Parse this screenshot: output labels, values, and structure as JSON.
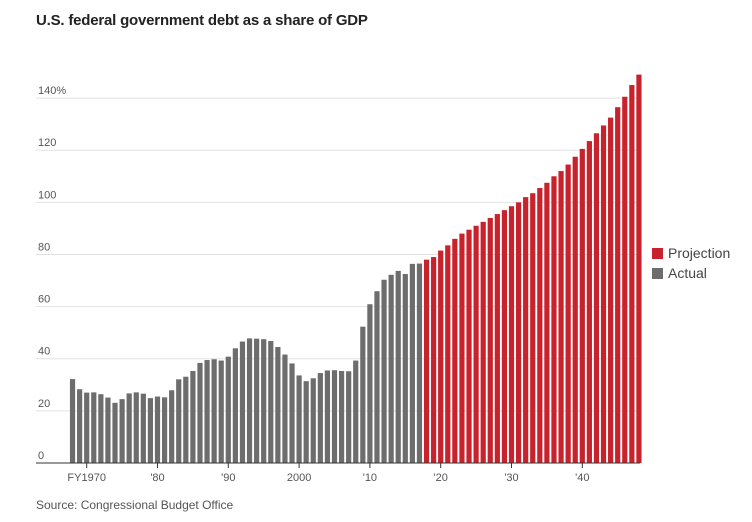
{
  "title": "U.S. federal government debt as a share of GDP",
  "source": "Source: Congressional Budget Office",
  "colors": {
    "actual": "#6d6d6d",
    "projection": "#c8232c",
    "grid": "#e2e2e2",
    "axis": "#333333"
  },
  "legend": [
    {
      "label": "Projection",
      "color": "#c8232c"
    },
    {
      "label": "Actual",
      "color": "#6d6d6d"
    }
  ],
  "chart_data": {
    "type": "bar",
    "title": "U.S. federal government debt as a share of GDP",
    "xlabel": "",
    "ylabel": "",
    "ylim": [
      0,
      150
    ],
    "yticks": [
      {
        "value": 0,
        "label": "0"
      },
      {
        "value": 20,
        "label": "20"
      },
      {
        "value": 40,
        "label": "40"
      },
      {
        "value": 60,
        "label": "60"
      },
      {
        "value": 80,
        "label": "80"
      },
      {
        "value": 100,
        "label": "100"
      },
      {
        "value": 120,
        "label": "120"
      },
      {
        "value": 140,
        "label": "140%"
      }
    ],
    "xticks": [
      {
        "year": 1970,
        "label": "FY1970"
      },
      {
        "year": 1980,
        "label": "'80"
      },
      {
        "year": 1990,
        "label": "'90"
      },
      {
        "year": 2000,
        "label": "2000"
      },
      {
        "year": 2010,
        "label": "'10"
      },
      {
        "year": 2020,
        "label": "'20"
      },
      {
        "year": 2030,
        "label": "'30"
      },
      {
        "year": 2040,
        "label": "'40"
      }
    ],
    "grid": true,
    "legend_position": "right",
    "series": [
      {
        "name": "Actual",
        "years": [
          1968,
          1969,
          1970,
          1971,
          1972,
          1973,
          1974,
          1975,
          1976,
          1977,
          1978,
          1979,
          1980,
          1981,
          1982,
          1983,
          1984,
          1985,
          1986,
          1987,
          1988,
          1989,
          1990,
          1991,
          1992,
          1993,
          1994,
          1995,
          1996,
          1997,
          1998,
          1999,
          2000,
          2001,
          2002,
          2003,
          2004,
          2005,
          2006,
          2007,
          2008,
          2009,
          2010,
          2011,
          2012,
          2013,
          2014,
          2015,
          2016,
          2017
        ],
        "values": [
          32.2,
          28.3,
          27.0,
          27.1,
          26.4,
          25.1,
          23.1,
          24.5,
          26.7,
          27.1,
          26.6,
          24.9,
          25.5,
          25.2,
          27.9,
          32.1,
          33.1,
          35.3,
          38.4,
          39.5,
          39.8,
          39.3,
          40.8,
          44.0,
          46.6,
          47.8,
          47.7,
          47.5,
          46.8,
          44.5,
          41.6,
          38.2,
          33.6,
          31.4,
          32.5,
          34.5,
          35.5,
          35.6,
          35.3,
          35.2,
          39.3,
          52.3,
          60.9,
          65.9,
          70.3,
          72.2,
          73.7,
          72.5,
          76.4,
          76.5
        ]
      },
      {
        "name": "Projection",
        "years": [
          2018,
          2019,
          2020,
          2021,
          2022,
          2023,
          2024,
          2025,
          2026,
          2027,
          2028,
          2029,
          2030,
          2031,
          2032,
          2033,
          2034,
          2035,
          2036,
          2037,
          2038,
          2039,
          2040,
          2041,
          2042,
          2043,
          2044,
          2045,
          2046,
          2047,
          2048
        ],
        "values": [
          78.0,
          79.0,
          81.5,
          83.5,
          86.0,
          88.0,
          89.5,
          91.0,
          92.5,
          94.0,
          95.5,
          97.0,
          98.5,
          100.0,
          102.0,
          103.5,
          105.5,
          107.5,
          110.0,
          112.0,
          114.5,
          117.5,
          120.5,
          123.5,
          126.5,
          129.5,
          132.5,
          136.5,
          140.5,
          145.0,
          149.0
        ]
      }
    ]
  }
}
